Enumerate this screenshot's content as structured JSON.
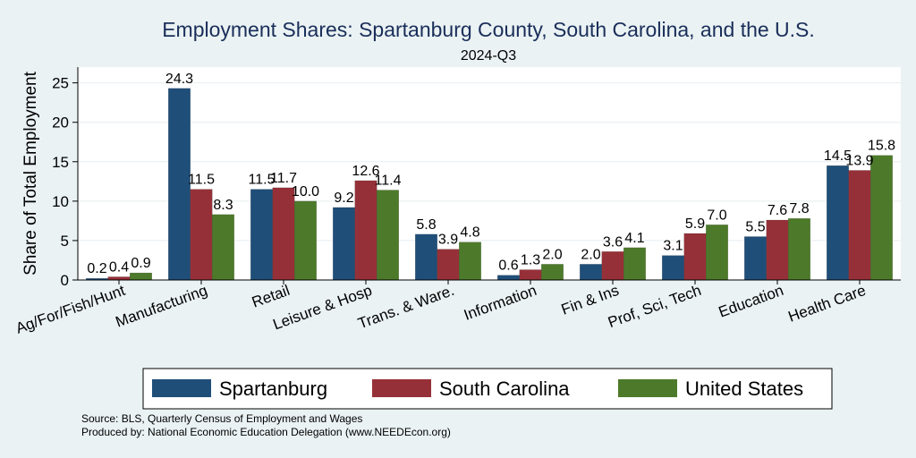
{
  "chart_data": {
    "type": "bar",
    "title": "Employment Shares: Spartanburg County, South Carolina, and the U.S.",
    "subtitle": "2024-Q3",
    "ylabel": "Share of Total Employment",
    "xlabel": "",
    "ylim": [
      0,
      27
    ],
    "yticks": [
      0,
      5,
      10,
      15,
      20,
      25
    ],
    "grid": true,
    "legend_position": "bottom",
    "categories": [
      "Ag/For/Fish/Hunt",
      "Manufacturing",
      "Retail",
      "Leisure & Hosp",
      "Trans. & Ware.",
      "Information",
      "Fin & Ins",
      "Prof, Sci, Tech",
      "Education",
      "Health Care"
    ],
    "series": [
      {
        "name": "Spartanburg",
        "color": "#1f4e79",
        "values": [
          0.2,
          24.3,
          11.5,
          9.2,
          5.8,
          0.6,
          2.0,
          3.1,
          5.5,
          14.5
        ]
      },
      {
        "name": "South Carolina",
        "color": "#963038",
        "values": [
          0.4,
          11.5,
          11.7,
          12.6,
          3.9,
          1.3,
          3.6,
          5.9,
          7.6,
          13.9
        ]
      },
      {
        "name": "United States",
        "color": "#4d7a2a",
        "values": [
          0.9,
          8.3,
          10.0,
          11.4,
          4.8,
          2.0,
          4.1,
          7.0,
          7.8,
          15.8
        ]
      }
    ]
  },
  "footer": {
    "source": "Source: BLS, Quarterly Census of Employment and Wages",
    "produced_by": "Produced by: National Economic Education Delegation (www.NEEDEcon.org)"
  }
}
